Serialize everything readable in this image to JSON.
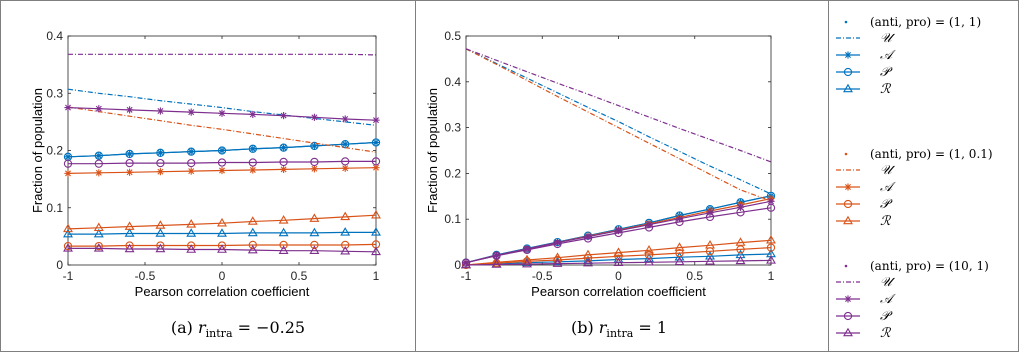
{
  "colors": {
    "blue": "#0072bd",
    "orange": "#d95319",
    "purple": "#7e2f8e"
  },
  "chart_data": [
    {
      "type": "line",
      "caption": "(a) r_intra = −0.25",
      "caption_prefix": "(a) ",
      "caption_var": "r",
      "caption_sub": "intra",
      "caption_value": " = −0.25",
      "xlabel": "Pearson correlation coefficient",
      "ylabel": "Fraction of population",
      "xlim": [
        -1,
        1
      ],
      "ylim": [
        0,
        0.4
      ],
      "xticks": [
        -1,
        -0.5,
        0,
        0.5,
        1
      ],
      "xtick_labels": [
        "-1",
        "-0.5",
        "0",
        "0.5",
        "1"
      ],
      "yticks": [
        0,
        0.1,
        0.2,
        0.3,
        0.4
      ],
      "ytick_labels": [
        "0",
        "0.1",
        "0.2",
        "0.3",
        "0.4"
      ],
      "x": [
        -1,
        -0.8,
        -0.6,
        -0.4,
        -0.2,
        0,
        0.2,
        0.4,
        0.6,
        0.8,
        1
      ],
      "series": [
        {
          "group": "(1, 1)",
          "symbol": "U",
          "color": "blue",
          "values": [
            0.307,
            0.3,
            0.294,
            0.287,
            0.281,
            0.275,
            0.268,
            0.262,
            0.256,
            0.25,
            0.244
          ]
        },
        {
          "group": "(1, 1)",
          "symbol": "A",
          "color": "blue",
          "values": [
            0.189,
            0.191,
            0.194,
            0.196,
            0.198,
            0.2,
            0.203,
            0.205,
            0.208,
            0.211,
            0.214
          ]
        },
        {
          "group": "(1, 1)",
          "symbol": "P",
          "color": "blue",
          "values": [
            0.189,
            0.191,
            0.194,
            0.196,
            0.198,
            0.2,
            0.203,
            0.205,
            0.208,
            0.211,
            0.214
          ]
        },
        {
          "group": "(1, 1)",
          "symbol": "R",
          "color": "blue",
          "values": [
            0.054,
            0.054,
            0.055,
            0.055,
            0.055,
            0.055,
            0.056,
            0.056,
            0.056,
            0.057,
            0.057
          ]
        },
        {
          "group": "(1, 0.1)",
          "symbol": "U",
          "color": "orange",
          "values": [
            0.276,
            0.268,
            0.26,
            0.252,
            0.244,
            0.237,
            0.229,
            0.221,
            0.213,
            0.205,
            0.197
          ]
        },
        {
          "group": "(1, 0.1)",
          "symbol": "A",
          "color": "orange",
          "values": [
            0.16,
            0.161,
            0.162,
            0.163,
            0.164,
            0.165,
            0.166,
            0.167,
            0.168,
            0.169,
            0.17
          ]
        },
        {
          "group": "(1, 0.1)",
          "symbol": "P",
          "color": "orange",
          "values": [
            0.033,
            0.033,
            0.034,
            0.034,
            0.034,
            0.034,
            0.035,
            0.035,
            0.035,
            0.035,
            0.036
          ]
        },
        {
          "group": "(1, 0.1)",
          "symbol": "R",
          "color": "orange",
          "values": [
            0.063,
            0.065,
            0.067,
            0.069,
            0.071,
            0.073,
            0.076,
            0.078,
            0.081,
            0.084,
            0.087
          ]
        },
        {
          "group": "(10, 1)",
          "symbol": "U",
          "color": "purple",
          "values": [
            0.368,
            0.368,
            0.368,
            0.368,
            0.368,
            0.368,
            0.368,
            0.368,
            0.368,
            0.368,
            0.367
          ]
        },
        {
          "group": "(10, 1)",
          "symbol": "A",
          "color": "purple",
          "values": [
            0.275,
            0.273,
            0.271,
            0.269,
            0.267,
            0.265,
            0.263,
            0.261,
            0.258,
            0.255,
            0.253
          ]
        },
        {
          "group": "(10, 1)",
          "symbol": "P",
          "color": "purple",
          "values": [
            0.177,
            0.177,
            0.178,
            0.178,
            0.178,
            0.179,
            0.179,
            0.18,
            0.18,
            0.181,
            0.181
          ]
        },
        {
          "group": "(10, 1)",
          "symbol": "R",
          "color": "purple",
          "values": [
            0.029,
            0.029,
            0.028,
            0.028,
            0.027,
            0.027,
            0.026,
            0.025,
            0.025,
            0.024,
            0.023
          ]
        }
      ]
    },
    {
      "type": "line",
      "caption": "(b) r_intra = 1",
      "caption_prefix": "(b) ",
      "caption_var": "r",
      "caption_sub": "intra",
      "caption_value": " = 1",
      "xlabel": "Pearson correlation coefficient",
      "ylabel": "Fraction of population",
      "xlim": [
        -1,
        1
      ],
      "ylim": [
        0,
        0.5
      ],
      "xticks": [
        -1,
        -0.5,
        0,
        0.5,
        1
      ],
      "xtick_labels": [
        "-1",
        "-0.5",
        "0",
        "0.5",
        "1"
      ],
      "yticks": [
        0,
        0.1,
        0.2,
        0.3,
        0.4,
        0.5
      ],
      "ytick_labels": [
        "0",
        "0.1",
        "0.2",
        "0.3",
        "0.4",
        "0.5"
      ],
      "x": [
        -1,
        -0.8,
        -0.6,
        -0.4,
        -0.2,
        0,
        0.2,
        0.4,
        0.6,
        0.8,
        1
      ],
      "series": [
        {
          "group": "(1, 1)",
          "symbol": "U",
          "color": "blue",
          "values": [
            0.472,
            0.44,
            0.408,
            0.376,
            0.344,
            0.313,
            0.28,
            0.248,
            0.216,
            0.186,
            0.155
          ]
        },
        {
          "group": "(1, 1)",
          "symbol": "A",
          "color": "blue",
          "values": [
            0.005,
            0.022,
            0.036,
            0.05,
            0.064,
            0.078,
            0.092,
            0.108,
            0.122,
            0.137,
            0.151
          ]
        },
        {
          "group": "(1, 1)",
          "symbol": "P",
          "color": "blue",
          "values": [
            0.005,
            0.022,
            0.036,
            0.05,
            0.064,
            0.078,
            0.092,
            0.108,
            0.122,
            0.137,
            0.151
          ]
        },
        {
          "group": "(1, 1)",
          "symbol": "R",
          "color": "blue",
          "values": [
            0.0,
            0.002,
            0.005,
            0.007,
            0.009,
            0.012,
            0.014,
            0.017,
            0.019,
            0.022,
            0.024
          ]
        },
        {
          "group": "(1, 0.1)",
          "symbol": "U",
          "color": "orange",
          "values": [
            0.472,
            0.438,
            0.403,
            0.368,
            0.334,
            0.3,
            0.266,
            0.232,
            0.198,
            0.164,
            0.14
          ]
        },
        {
          "group": "(1, 0.1)",
          "symbol": "A",
          "color": "orange",
          "values": [
            0.005,
            0.021,
            0.035,
            0.049,
            0.063,
            0.076,
            0.09,
            0.104,
            0.118,
            0.131,
            0.145
          ]
        },
        {
          "group": "(1, 0.1)",
          "symbol": "P",
          "color": "orange",
          "values": [
            0.0,
            0.004,
            0.008,
            0.011,
            0.015,
            0.019,
            0.022,
            0.026,
            0.03,
            0.034,
            0.038
          ]
        },
        {
          "group": "(1, 0.1)",
          "symbol": "R",
          "color": "orange",
          "values": [
            0.0,
            0.006,
            0.011,
            0.016,
            0.022,
            0.027,
            0.032,
            0.038,
            0.043,
            0.049,
            0.054
          ]
        },
        {
          "group": "(10, 1)",
          "symbol": "U",
          "color": "purple",
          "values": [
            0.472,
            0.447,
            0.422,
            0.397,
            0.373,
            0.348,
            0.323,
            0.298,
            0.274,
            0.25,
            0.225
          ]
        },
        {
          "group": "(10, 1)",
          "symbol": "A",
          "color": "purple",
          "values": [
            0.005,
            0.021,
            0.035,
            0.049,
            0.062,
            0.075,
            0.088,
            0.101,
            0.114,
            0.126,
            0.139
          ]
        },
        {
          "group": "(10, 1)",
          "symbol": "P",
          "color": "purple",
          "values": [
            0.005,
            0.02,
            0.033,
            0.046,
            0.058,
            0.07,
            0.082,
            0.094,
            0.105,
            0.115,
            0.125
          ]
        },
        {
          "group": "(10, 1)",
          "symbol": "R",
          "color": "purple",
          "values": [
            0.0,
            0.001,
            0.002,
            0.003,
            0.004,
            0.005,
            0.006,
            0.007,
            0.008,
            0.009,
            0.01
          ]
        }
      ]
    }
  ],
  "legend": {
    "placement": "right",
    "groups": [
      {
        "color": "blue",
        "header": "(anti, pro) = (1, 1)",
        "items": [
          {
            "symbol": "U",
            "label": "𝒰"
          },
          {
            "symbol": "A",
            "label": "𝒜"
          },
          {
            "symbol": "P",
            "label": "𝒫"
          },
          {
            "symbol": "R",
            "label": "ℛ"
          }
        ]
      },
      {
        "color": "orange",
        "header": "(anti, pro) = (1, 0.1)",
        "items": [
          {
            "symbol": "U",
            "label": "𝒰"
          },
          {
            "symbol": "A",
            "label": "𝒜"
          },
          {
            "symbol": "P",
            "label": "𝒫"
          },
          {
            "symbol": "R",
            "label": "ℛ"
          }
        ]
      },
      {
        "color": "purple",
        "header": "(anti, pro) = (10, 1)",
        "items": [
          {
            "symbol": "U",
            "label": "𝒰"
          },
          {
            "symbol": "A",
            "label": "𝒜"
          },
          {
            "symbol": "P",
            "label": "𝒫"
          },
          {
            "symbol": "R",
            "label": "ℛ"
          }
        ]
      }
    ]
  }
}
